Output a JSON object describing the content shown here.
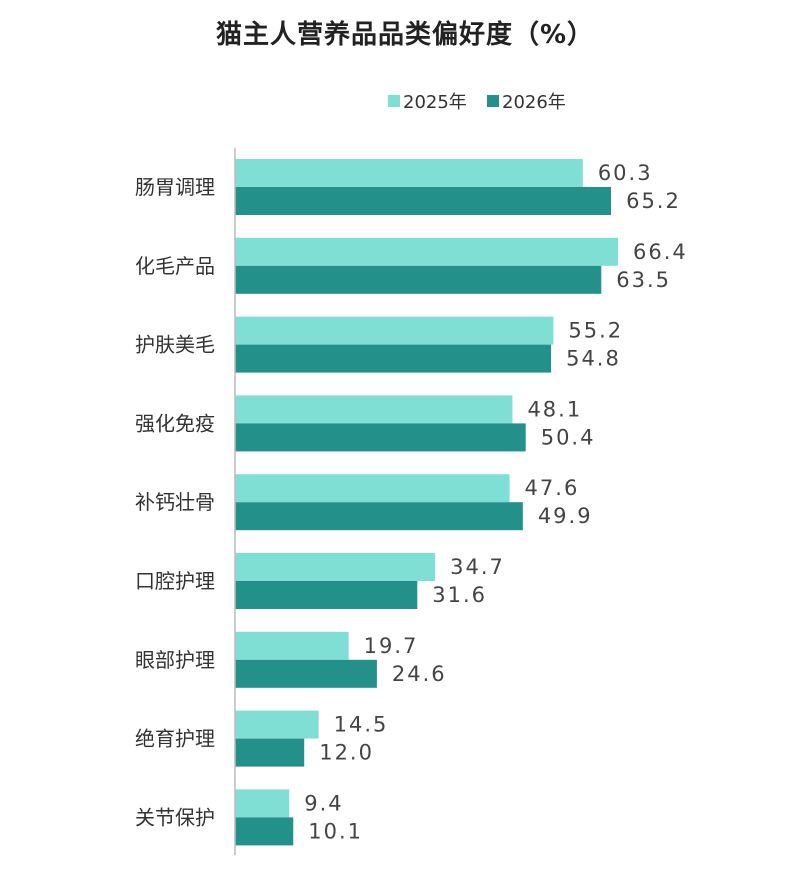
{
  "chart_data": {
    "type": "bar",
    "orientation": "horizontal",
    "title": "猫主人营养品品类偏好度（%）",
    "categories": [
      "肠胃调理",
      "化毛产品",
      "护肤美毛",
      "强化免疫",
      "补钙壮骨",
      "口腔护理",
      "眼部护理",
      "绝育护理",
      "关节保护"
    ],
    "series": [
      {
        "name": "2025年",
        "color": "#7FDFD4",
        "values": [
          60.3,
          66.4,
          55.2,
          48.1,
          47.6,
          34.7,
          19.7,
          14.5,
          9.4
        ],
        "labels": [
          "60.3",
          "66.4",
          "55.2",
          "48.1",
          "47.6",
          "34.7",
          "19.7",
          "14.5",
          "9.4"
        ]
      },
      {
        "name": "2026年",
        "color": "#23908A",
        "values": [
          65.2,
          63.5,
          54.8,
          50.4,
          49.9,
          31.6,
          24.6,
          12.0,
          10.1
        ],
        "labels": [
          "65.2",
          "63.5",
          "54.8",
          "50.4",
          "49.9",
          "31.6",
          "24.6",
          "12.0",
          "10.1"
        ]
      }
    ],
    "xlim": [
      0,
      70
    ],
    "grid": false,
    "legend_position": "top"
  }
}
